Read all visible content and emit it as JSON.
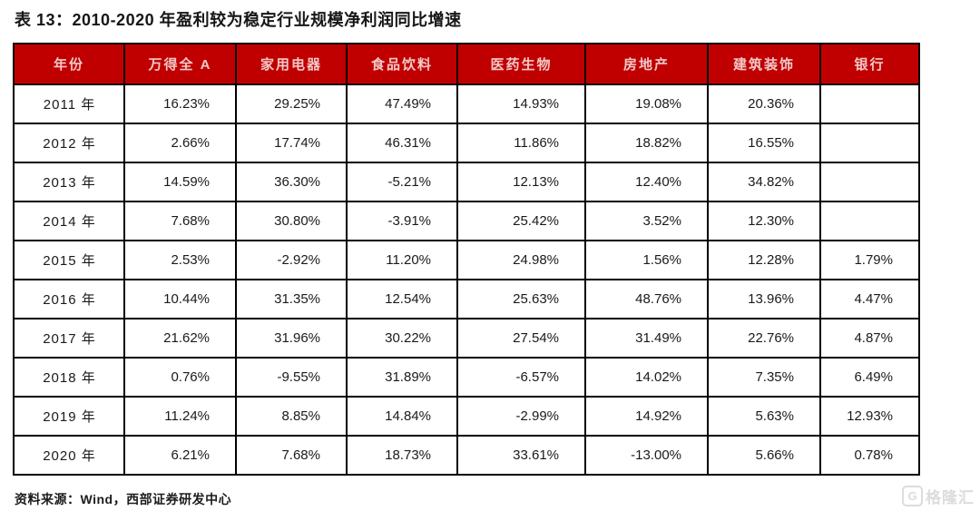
{
  "title": "表 13：2010-2020 年盈利较为稳定行业规模净利润同比增速",
  "source_note": "资料来源：Wind，西部证券研发中心",
  "watermark": {
    "icon_letter": "G",
    "text": "格隆汇"
  },
  "colors": {
    "header_bg": "#C00000",
    "header_text": "#F3C8C8",
    "border": "#000000",
    "body_text": "#1a1a1a",
    "watermark_gray": "#dcdcdc"
  },
  "chart_data": {
    "type": "table",
    "columns": [
      "年份",
      "万得全 A",
      "家用电器",
      "食品饮料",
      "医药生物",
      "房地产",
      "建筑装饰",
      "银行"
    ],
    "rows": [
      [
        "2011 年",
        "16.23%",
        "29.25%",
        "47.49%",
        "14.93%",
        "19.08%",
        "20.36%",
        ""
      ],
      [
        "2012 年",
        "2.66%",
        "17.74%",
        "46.31%",
        "11.86%",
        "18.82%",
        "16.55%",
        ""
      ],
      [
        "2013 年",
        "14.59%",
        "36.30%",
        "-5.21%",
        "12.13%",
        "12.40%",
        "34.82%",
        ""
      ],
      [
        "2014 年",
        "7.68%",
        "30.80%",
        "-3.91%",
        "25.42%",
        "3.52%",
        "12.30%",
        ""
      ],
      [
        "2015 年",
        "2.53%",
        "-2.92%",
        "11.20%",
        "24.98%",
        "1.56%",
        "12.28%",
        "1.79%"
      ],
      [
        "2016 年",
        "10.44%",
        "31.35%",
        "12.54%",
        "25.63%",
        "48.76%",
        "13.96%",
        "4.47%"
      ],
      [
        "2017 年",
        "21.62%",
        "31.96%",
        "30.22%",
        "27.54%",
        "31.49%",
        "22.76%",
        "4.87%"
      ],
      [
        "2018 年",
        "0.76%",
        "-9.55%",
        "31.89%",
        "-6.57%",
        "14.02%",
        "7.35%",
        "6.49%"
      ],
      [
        "2019 年",
        "11.24%",
        "8.85%",
        "14.84%",
        "-2.99%",
        "14.92%",
        "5.63%",
        "12.93%"
      ],
      [
        "2020 年",
        "6.21%",
        "7.68%",
        "18.73%",
        "33.61%",
        "-13.00%",
        "5.66%",
        "0.78%"
      ]
    ]
  }
}
